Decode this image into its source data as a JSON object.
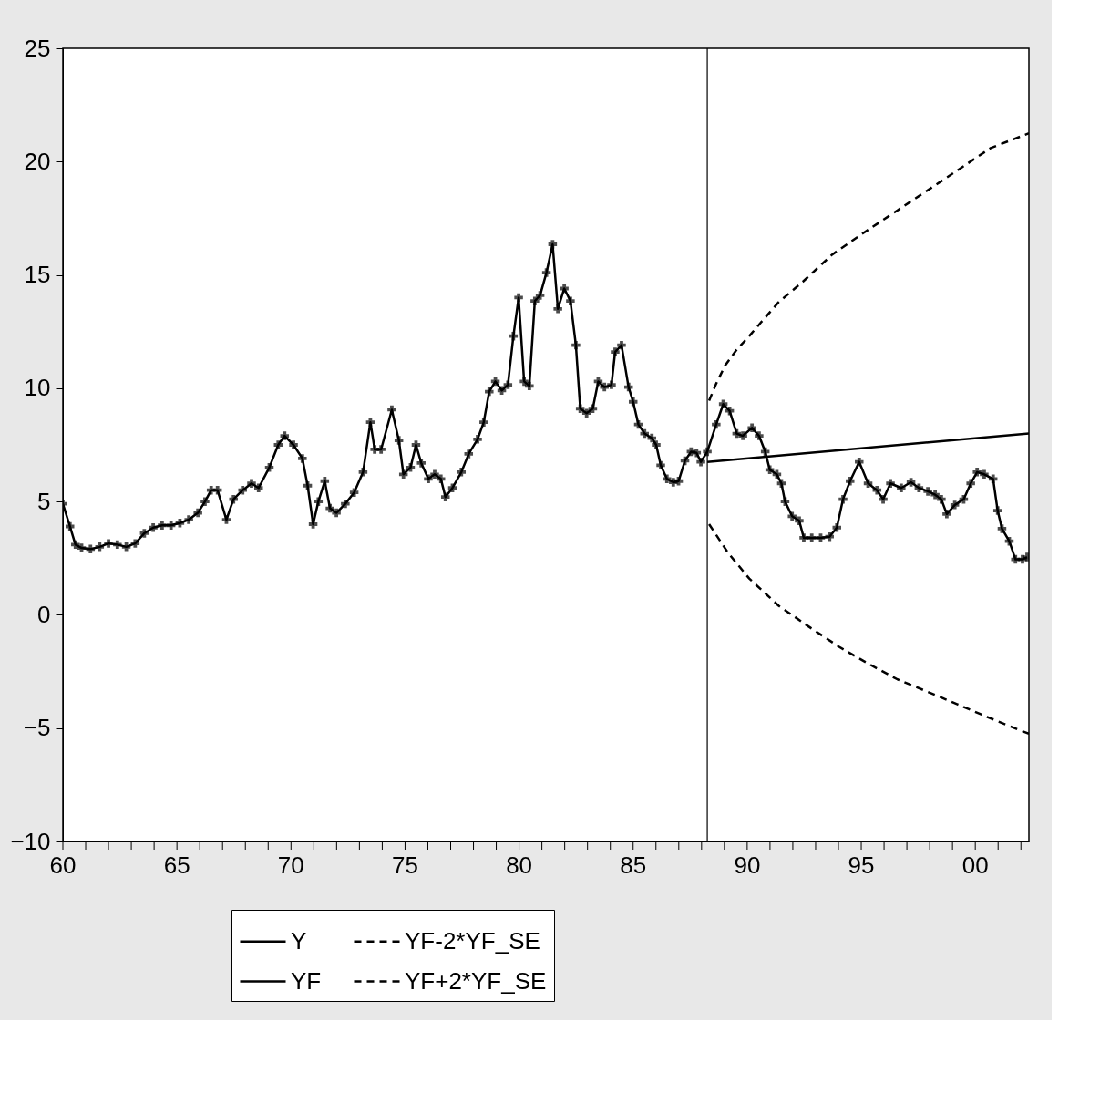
{
  "chart_data": {
    "type": "line",
    "xlim": [
      1960,
      2002.35
    ],
    "ylim": [
      -10,
      25
    ],
    "xticks": [
      {
        "value": 1960,
        "label": "60"
      },
      {
        "value": 1961,
        "label": null
      },
      {
        "value": 1962,
        "label": null
      },
      {
        "value": 1963,
        "label": null
      },
      {
        "value": 1964,
        "label": null
      },
      {
        "value": 1965,
        "label": "65"
      },
      {
        "value": 1966,
        "label": null
      },
      {
        "value": 1967,
        "label": null
      },
      {
        "value": 1968,
        "label": null
      },
      {
        "value": 1969,
        "label": null
      },
      {
        "value": 1970,
        "label": "70"
      },
      {
        "value": 1971,
        "label": null
      },
      {
        "value": 1972,
        "label": null
      },
      {
        "value": 1973,
        "label": null
      },
      {
        "value": 1974,
        "label": null
      },
      {
        "value": 1975,
        "label": "75"
      },
      {
        "value": 1976,
        "label": null
      },
      {
        "value": 1977,
        "label": null
      },
      {
        "value": 1978,
        "label": null
      },
      {
        "value": 1979,
        "label": null
      },
      {
        "value": 1980,
        "label": "80"
      },
      {
        "value": 1981,
        "label": null
      },
      {
        "value": 1982,
        "label": null
      },
      {
        "value": 1983,
        "label": null
      },
      {
        "value": 1984,
        "label": null
      },
      {
        "value": 1985,
        "label": "85"
      },
      {
        "value": 1986,
        "label": null
      },
      {
        "value": 1987,
        "label": null
      },
      {
        "value": 1988,
        "label": null
      },
      {
        "value": 1989,
        "label": null
      },
      {
        "value": 1990,
        "label": "90"
      },
      {
        "value": 1991,
        "label": null
      },
      {
        "value": 1992,
        "label": null
      },
      {
        "value": 1993,
        "label": null
      },
      {
        "value": 1994,
        "label": null
      },
      {
        "value": 1995,
        "label": "95"
      },
      {
        "value": 1996,
        "label": null
      },
      {
        "value": 1997,
        "label": null
      },
      {
        "value": 1998,
        "label": null
      },
      {
        "value": 1999,
        "label": null
      },
      {
        "value": 2000,
        "label": "00"
      },
      {
        "value": 2001,
        "label": null
      },
      {
        "value": 2002,
        "label": null
      }
    ],
    "yticks": [
      -10,
      -5,
      0,
      5,
      10,
      15,
      20,
      25
    ],
    "grid": false,
    "legend": "bottom",
    "ref_lines": [
      {
        "axis": "x",
        "value": 1988.25,
        "color": "#000000"
      }
    ],
    "series": [
      {
        "name": "Y",
        "color": "#000000",
        "marker": "cross",
        "line_style": "solid",
        "x": [
          1960.0,
          1960.31,
          1960.55,
          1960.82,
          1961.21,
          1961.61,
          1962.0,
          1962.39,
          1962.78,
          1963.17,
          1963.57,
          1963.96,
          1964.35,
          1964.74,
          1965.13,
          1965.52,
          1965.92,
          1966.23,
          1966.5,
          1966.78,
          1967.17,
          1967.48,
          1967.88,
          1968.27,
          1968.58,
          1969.05,
          1969.44,
          1969.72,
          1970.11,
          1970.5,
          1970.73,
          1970.97,
          1971.2,
          1971.48,
          1971.71,
          1971.99,
          1972.38,
          1972.77,
          1973.16,
          1973.48,
          1973.67,
          1973.95,
          1974.42,
          1974.73,
          1974.93,
          1975.24,
          1975.48,
          1975.71,
          1976.02,
          1976.3,
          1976.57,
          1976.77,
          1977.08,
          1977.47,
          1977.79,
          1978.18,
          1978.45,
          1978.69,
          1978.96,
          1979.24,
          1979.51,
          1979.75,
          1979.98,
          1980.22,
          1980.45,
          1980.69,
          1980.92,
          1981.2,
          1981.47,
          1981.7,
          1981.98,
          1982.25,
          1982.49,
          1982.68,
          1982.96,
          1983.23,
          1983.47,
          1983.74,
          1984.05,
          1984.21,
          1984.49,
          1984.8,
          1985.0,
          1985.23,
          1985.5,
          1985.82,
          1986.01,
          1986.21,
          1986.48,
          1986.76,
          1986.99,
          1987.27,
          1987.54,
          1987.78,
          1987.97,
          1988.25,
          1988.64,
          1988.95,
          1989.23,
          1989.54,
          1989.81,
          1990.21,
          1990.52,
          1990.79,
          1990.99,
          1991.3,
          1991.5,
          1991.66,
          1991.97,
          1992.28,
          1992.48,
          1992.83,
          1993.22,
          1993.61,
          1993.93,
          1994.2,
          1994.51,
          1994.91,
          1995.3,
          1995.69,
          1995.96,
          1996.28,
          1996.75,
          1997.18,
          1997.53,
          1997.92,
          1998.24,
          1998.51,
          1998.75,
          1999.1,
          1999.49,
          1999.8,
          2000.08,
          2000.39,
          2000.78,
          2000.98,
          2001.17,
          2001.49,
          2001.76,
          2002.07,
          2002.27
        ],
        "values": [
          4.9,
          3.9,
          3.1,
          2.95,
          2.9,
          3.0,
          3.15,
          3.1,
          3.0,
          3.15,
          3.6,
          3.85,
          3.95,
          3.95,
          4.05,
          4.2,
          4.5,
          5.0,
          5.5,
          5.5,
          4.2,
          5.1,
          5.5,
          5.8,
          5.6,
          6.5,
          7.5,
          7.9,
          7.5,
          6.9,
          5.7,
          4.0,
          5.0,
          5.9,
          4.7,
          4.5,
          4.9,
          5.4,
          6.3,
          8.5,
          7.3,
          7.3,
          9.05,
          7.7,
          6.2,
          6.5,
          7.5,
          6.7,
          6.0,
          6.2,
          6.0,
          5.2,
          5.6,
          6.3,
          7.1,
          7.75,
          8.5,
          9.85,
          10.3,
          9.9,
          10.15,
          12.3,
          14.0,
          10.3,
          10.1,
          13.85,
          14.1,
          15.1,
          16.35,
          13.5,
          14.4,
          13.85,
          11.9,
          9.1,
          8.9,
          9.1,
          10.3,
          10.05,
          10.15,
          11.6,
          11.9,
          10.05,
          9.4,
          8.4,
          8.0,
          7.8,
          7.5,
          6.6,
          6.0,
          5.85,
          5.9,
          6.8,
          7.2,
          7.15,
          6.75,
          7.2,
          8.4,
          9.3,
          9.0,
          8.0,
          7.9,
          8.25,
          7.9,
          7.2,
          6.4,
          6.2,
          5.8,
          5.0,
          4.35,
          4.15,
          3.4,
          3.4,
          3.4,
          3.45,
          3.85,
          5.1,
          5.9,
          6.75,
          5.8,
          5.5,
          5.1,
          5.8,
          5.6,
          5.85,
          5.6,
          5.45,
          5.3,
          5.1,
          4.45,
          4.85,
          5.1,
          5.8,
          6.3,
          6.2,
          6.0,
          4.6,
          3.8,
          3.25,
          2.45,
          2.45,
          2.55
        ]
      },
      {
        "name": "YF",
        "color": "#000000",
        "marker": "none",
        "line_style": "solid",
        "x": [
          1988.25,
          2002.35
        ],
        "values": [
          6.75,
          8.0
        ]
      },
      {
        "name": "YF-2*YF_SE",
        "color": "#000000",
        "marker": "none",
        "line_style": "dashed",
        "x": [
          1988.33,
          1989.15,
          1990.09,
          1991.38,
          1992.67,
          1994.01,
          1995.3,
          1996.59,
          1997.92,
          1999.22,
          2000.51,
          2001.96,
          2002.35
        ],
        "values": [
          4.0,
          2.75,
          1.6,
          0.4,
          -0.5,
          -1.4,
          -2.15,
          -2.85,
          -3.4,
          -3.95,
          -4.5,
          -5.1,
          -5.25
        ]
      },
      {
        "name": "YF+2*YF_SE",
        "color": "#000000",
        "marker": "none",
        "line_style": "dashed",
        "x": [
          1988.33,
          1988.64,
          1989.03,
          1989.54,
          1990.09,
          1990.6,
          1991.38,
          1992.44,
          1993.73,
          1995.02,
          1996.59,
          1998.16,
          1999.49,
          2000.67,
          2002.35
        ],
        "values": [
          9.45,
          10.2,
          11.0,
          11.7,
          12.3,
          12.9,
          13.8,
          14.7,
          15.9,
          16.8,
          17.85,
          18.9,
          19.8,
          20.6,
          21.25
        ]
      }
    ]
  }
}
